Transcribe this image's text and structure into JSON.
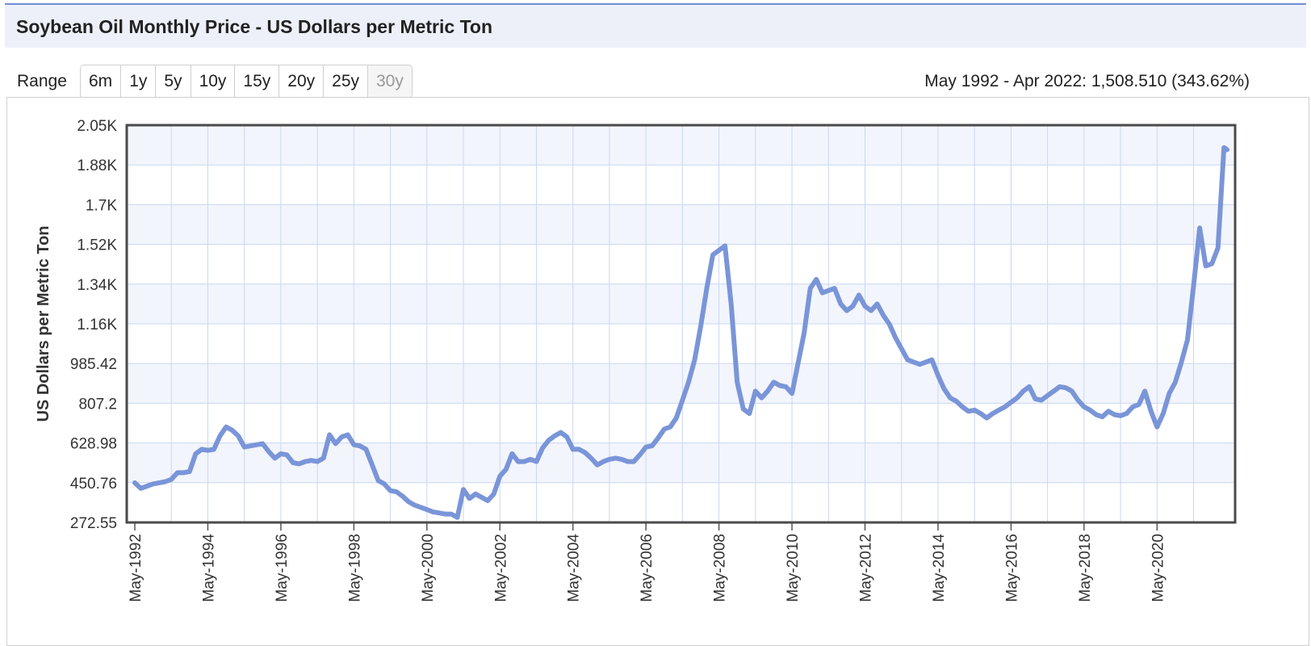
{
  "header": {
    "title": "Soybean Oil Monthly Price - US Dollars per Metric Ton"
  },
  "range": {
    "label": "Range",
    "buttons": [
      "6m",
      "1y",
      "5y",
      "10y",
      "15y",
      "20y",
      "25y",
      "30y"
    ],
    "active": "30y",
    "summary": "May 1992 - Apr 2022: 1,508.510 (343.62%)"
  },
  "colors": {
    "line": "#7a95d8",
    "band": "#f3f5fd",
    "grid": "#c9d7f2",
    "border": "#4a4a4a"
  },
  "chart_data": {
    "type": "line",
    "title": "",
    "xlabel": "",
    "ylabel": "US Dollars per Metric Ton",
    "y_ticks": [
      "272.55",
      "450.76",
      "628.98",
      "807.2",
      "985.42",
      "1.16K",
      "1.34K",
      "1.52K",
      "1.7K",
      "1.88K",
      "2.05K"
    ],
    "ylim": [
      272.55,
      2050
    ],
    "x_ticks": [
      "May-1992",
      "May-1994",
      "May-1996",
      "May-1998",
      "May-2000",
      "May-2002",
      "May-2004",
      "May-2006",
      "May-2008",
      "May-2010",
      "May-2012",
      "May-2014",
      "May-2016",
      "May-2018",
      "May-2020"
    ],
    "x_range": [
      "May-1992",
      "Apr-2022"
    ],
    "grid": true,
    "series": [
      {
        "name": "",
        "points": [
          [
            "1992-05",
            450
          ],
          [
            "1992-07",
            425
          ],
          [
            "1992-09",
            435
          ],
          [
            "1992-11",
            445
          ],
          [
            "1993-01",
            450
          ],
          [
            "1993-03",
            455
          ],
          [
            "1993-05",
            465
          ],
          [
            "1993-07",
            495
          ],
          [
            "1993-09",
            495
          ],
          [
            "1993-11",
            500
          ],
          [
            "1994-01",
            580
          ],
          [
            "1994-03",
            600
          ],
          [
            "1994-05",
            595
          ],
          [
            "1994-07",
            600
          ],
          [
            "1994-09",
            660
          ],
          [
            "1994-11",
            700
          ],
          [
            "1995-01",
            685
          ],
          [
            "1995-03",
            660
          ],
          [
            "1995-05",
            610
          ],
          [
            "1995-07",
            615
          ],
          [
            "1995-09",
            620
          ],
          [
            "1995-11",
            625
          ],
          [
            "1996-01",
            590
          ],
          [
            "1996-03",
            560
          ],
          [
            "1996-05",
            580
          ],
          [
            "1996-07",
            575
          ],
          [
            "1996-09",
            540
          ],
          [
            "1996-11",
            535
          ],
          [
            "1997-01",
            545
          ],
          [
            "1997-03",
            550
          ],
          [
            "1997-05",
            545
          ],
          [
            "1997-07",
            560
          ],
          [
            "1997-09",
            665
          ],
          [
            "1997-11",
            625
          ],
          [
            "1998-01",
            655
          ],
          [
            "1998-03",
            665
          ],
          [
            "1998-05",
            620
          ],
          [
            "1998-07",
            615
          ],
          [
            "1998-09",
            600
          ],
          [
            "1998-11",
            530
          ],
          [
            "1999-01",
            460
          ],
          [
            "1999-03",
            445
          ],
          [
            "1999-05",
            415
          ],
          [
            "1999-07",
            410
          ],
          [
            "1999-09",
            390
          ],
          [
            "1999-11",
            365
          ],
          [
            "2000-01",
            350
          ],
          [
            "2000-03",
            340
          ],
          [
            "2000-05",
            330
          ],
          [
            "2000-07",
            320
          ],
          [
            "2000-09",
            315
          ],
          [
            "2000-11",
            310
          ],
          [
            "2001-01",
            310
          ],
          [
            "2001-03",
            295
          ],
          [
            "2001-05",
            420
          ],
          [
            "2001-07",
            380
          ],
          [
            "2001-09",
            400
          ],
          [
            "2001-11",
            385
          ],
          [
            "2002-01",
            370
          ],
          [
            "2002-03",
            400
          ],
          [
            "2002-05",
            480
          ],
          [
            "2002-07",
            510
          ],
          [
            "2002-09",
            580
          ],
          [
            "2002-11",
            545
          ],
          [
            "2003-01",
            545
          ],
          [
            "2003-03",
            555
          ],
          [
            "2003-05",
            545
          ],
          [
            "2003-07",
            605
          ],
          [
            "2003-09",
            640
          ],
          [
            "2003-11",
            660
          ],
          [
            "2004-01",
            675
          ],
          [
            "2004-03",
            655
          ],
          [
            "2004-05",
            600
          ],
          [
            "2004-07",
            600
          ],
          [
            "2004-09",
            585
          ],
          [
            "2004-11",
            560
          ],
          [
            "2005-01",
            530
          ],
          [
            "2005-03",
            545
          ],
          [
            "2005-05",
            555
          ],
          [
            "2005-07",
            560
          ],
          [
            "2005-09",
            555
          ],
          [
            "2005-11",
            545
          ],
          [
            "2006-01",
            545
          ],
          [
            "2006-03",
            575
          ],
          [
            "2006-05",
            610
          ],
          [
            "2006-07",
            615
          ],
          [
            "2006-09",
            650
          ],
          [
            "2006-11",
            690
          ],
          [
            "2007-01",
            700
          ],
          [
            "2007-03",
            740
          ],
          [
            "2007-05",
            820
          ],
          [
            "2007-07",
            900
          ],
          [
            "2007-09",
            1000
          ],
          [
            "2007-11",
            1150
          ],
          [
            "2008-01",
            1320
          ],
          [
            "2008-03",
            1470
          ],
          [
            "2008-05",
            1490
          ],
          [
            "2008-07",
            1510
          ],
          [
            "2008-09",
            1250
          ],
          [
            "2008-11",
            900
          ],
          [
            "2009-01",
            780
          ],
          [
            "2009-03",
            760
          ],
          [
            "2009-05",
            860
          ],
          [
            "2009-07",
            830
          ],
          [
            "2009-09",
            860
          ],
          [
            "2009-11",
            900
          ],
          [
            "2010-01",
            885
          ],
          [
            "2010-03",
            880
          ],
          [
            "2010-05",
            850
          ],
          [
            "2010-07",
            985
          ],
          [
            "2010-09",
            1120
          ],
          [
            "2010-11",
            1320
          ],
          [
            "2011-01",
            1360
          ],
          [
            "2011-03",
            1300
          ],
          [
            "2011-05",
            1310
          ],
          [
            "2011-07",
            1320
          ],
          [
            "2011-09",
            1250
          ],
          [
            "2011-11",
            1220
          ],
          [
            "2012-01",
            1240
          ],
          [
            "2012-03",
            1290
          ],
          [
            "2012-05",
            1240
          ],
          [
            "2012-07",
            1220
          ],
          [
            "2012-09",
            1250
          ],
          [
            "2012-11",
            1200
          ],
          [
            "2013-01",
            1160
          ],
          [
            "2013-03",
            1100
          ],
          [
            "2013-05",
            1050
          ],
          [
            "2013-07",
            1000
          ],
          [
            "2013-09",
            990
          ],
          [
            "2013-11",
            980
          ],
          [
            "2014-01",
            990
          ],
          [
            "2014-03",
            1000
          ],
          [
            "2014-05",
            930
          ],
          [
            "2014-07",
            870
          ],
          [
            "2014-09",
            830
          ],
          [
            "2014-11",
            815
          ],
          [
            "2015-01",
            790
          ],
          [
            "2015-03",
            770
          ],
          [
            "2015-05",
            775
          ],
          [
            "2015-07",
            760
          ],
          [
            "2015-09",
            740
          ],
          [
            "2015-11",
            760
          ],
          [
            "2016-01",
            775
          ],
          [
            "2016-03",
            790
          ],
          [
            "2016-05",
            810
          ],
          [
            "2016-07",
            830
          ],
          [
            "2016-09",
            860
          ],
          [
            "2016-11",
            880
          ],
          [
            "2017-01",
            825
          ],
          [
            "2017-03",
            820
          ],
          [
            "2017-05",
            840
          ],
          [
            "2017-07",
            860
          ],
          [
            "2017-09",
            880
          ],
          [
            "2017-11",
            875
          ],
          [
            "2018-01",
            860
          ],
          [
            "2018-03",
            820
          ],
          [
            "2018-05",
            790
          ],
          [
            "2018-07",
            775
          ],
          [
            "2018-09",
            755
          ],
          [
            "2018-11",
            745
          ],
          [
            "2019-01",
            770
          ],
          [
            "2019-03",
            755
          ],
          [
            "2019-05",
            750
          ],
          [
            "2019-07",
            760
          ],
          [
            "2019-09",
            790
          ],
          [
            "2019-11",
            800
          ],
          [
            "2020-01",
            860
          ],
          [
            "2020-03",
            770
          ],
          [
            "2020-05",
            700
          ],
          [
            "2020-07",
            760
          ],
          [
            "2020-09",
            850
          ],
          [
            "2020-11",
            900
          ],
          [
            "2021-01",
            990
          ],
          [
            "2021-03",
            1090
          ],
          [
            "2021-05",
            1330
          ],
          [
            "2021-07",
            1590
          ],
          [
            "2021-09",
            1420
          ],
          [
            "2021-11",
            1430
          ],
          [
            "2022-01",
            1500
          ],
          [
            "2022-03",
            1950
          ],
          [
            "2022-04",
            1940
          ]
        ]
      }
    ]
  }
}
